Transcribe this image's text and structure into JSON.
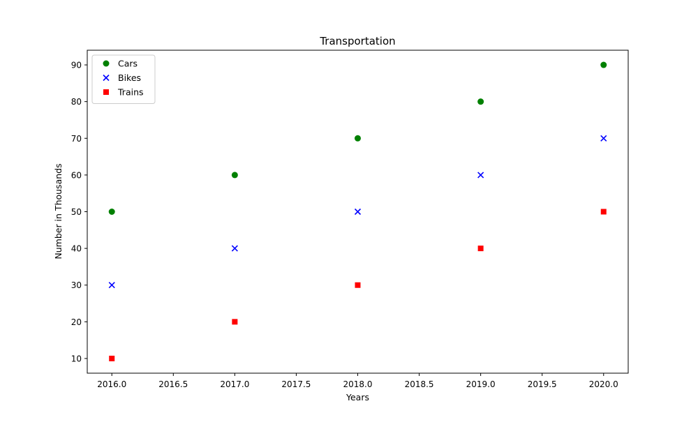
{
  "chart_data": {
    "type": "scatter",
    "title": "Transportation",
    "xlabel": "Years",
    "ylabel": "Number in Thousands",
    "xlim": [
      2015.8,
      2020.2
    ],
    "ylim": [
      6,
      94
    ],
    "x_ticks": [
      2016.0,
      2016.5,
      2017.0,
      2017.5,
      2018.0,
      2018.5,
      2019.0,
      2019.5,
      2020.0
    ],
    "x_tick_labels": [
      "2016.0",
      "2016.5",
      "2017.0",
      "2017.5",
      "2018.0",
      "2018.5",
      "2019.0",
      "2019.5",
      "2020.0"
    ],
    "y_ticks": [
      10,
      20,
      30,
      40,
      50,
      60,
      70,
      80,
      90
    ],
    "y_tick_labels": [
      "10",
      "20",
      "30",
      "40",
      "50",
      "60",
      "70",
      "80",
      "90"
    ],
    "grid": false,
    "legend_position": "top-left",
    "x": [
      2016,
      2017,
      2018,
      2019,
      2020
    ],
    "series": [
      {
        "name": "Cars",
        "values": [
          50,
          60,
          70,
          80,
          90
        ],
        "color": "#008000",
        "marker": "circle"
      },
      {
        "name": "Bikes",
        "values": [
          30,
          40,
          50,
          60,
          70
        ],
        "color": "#0000ff",
        "marker": "x"
      },
      {
        "name": "Trains",
        "values": [
          10,
          20,
          30,
          40,
          50
        ],
        "color": "#ff0000",
        "marker": "square"
      }
    ]
  }
}
